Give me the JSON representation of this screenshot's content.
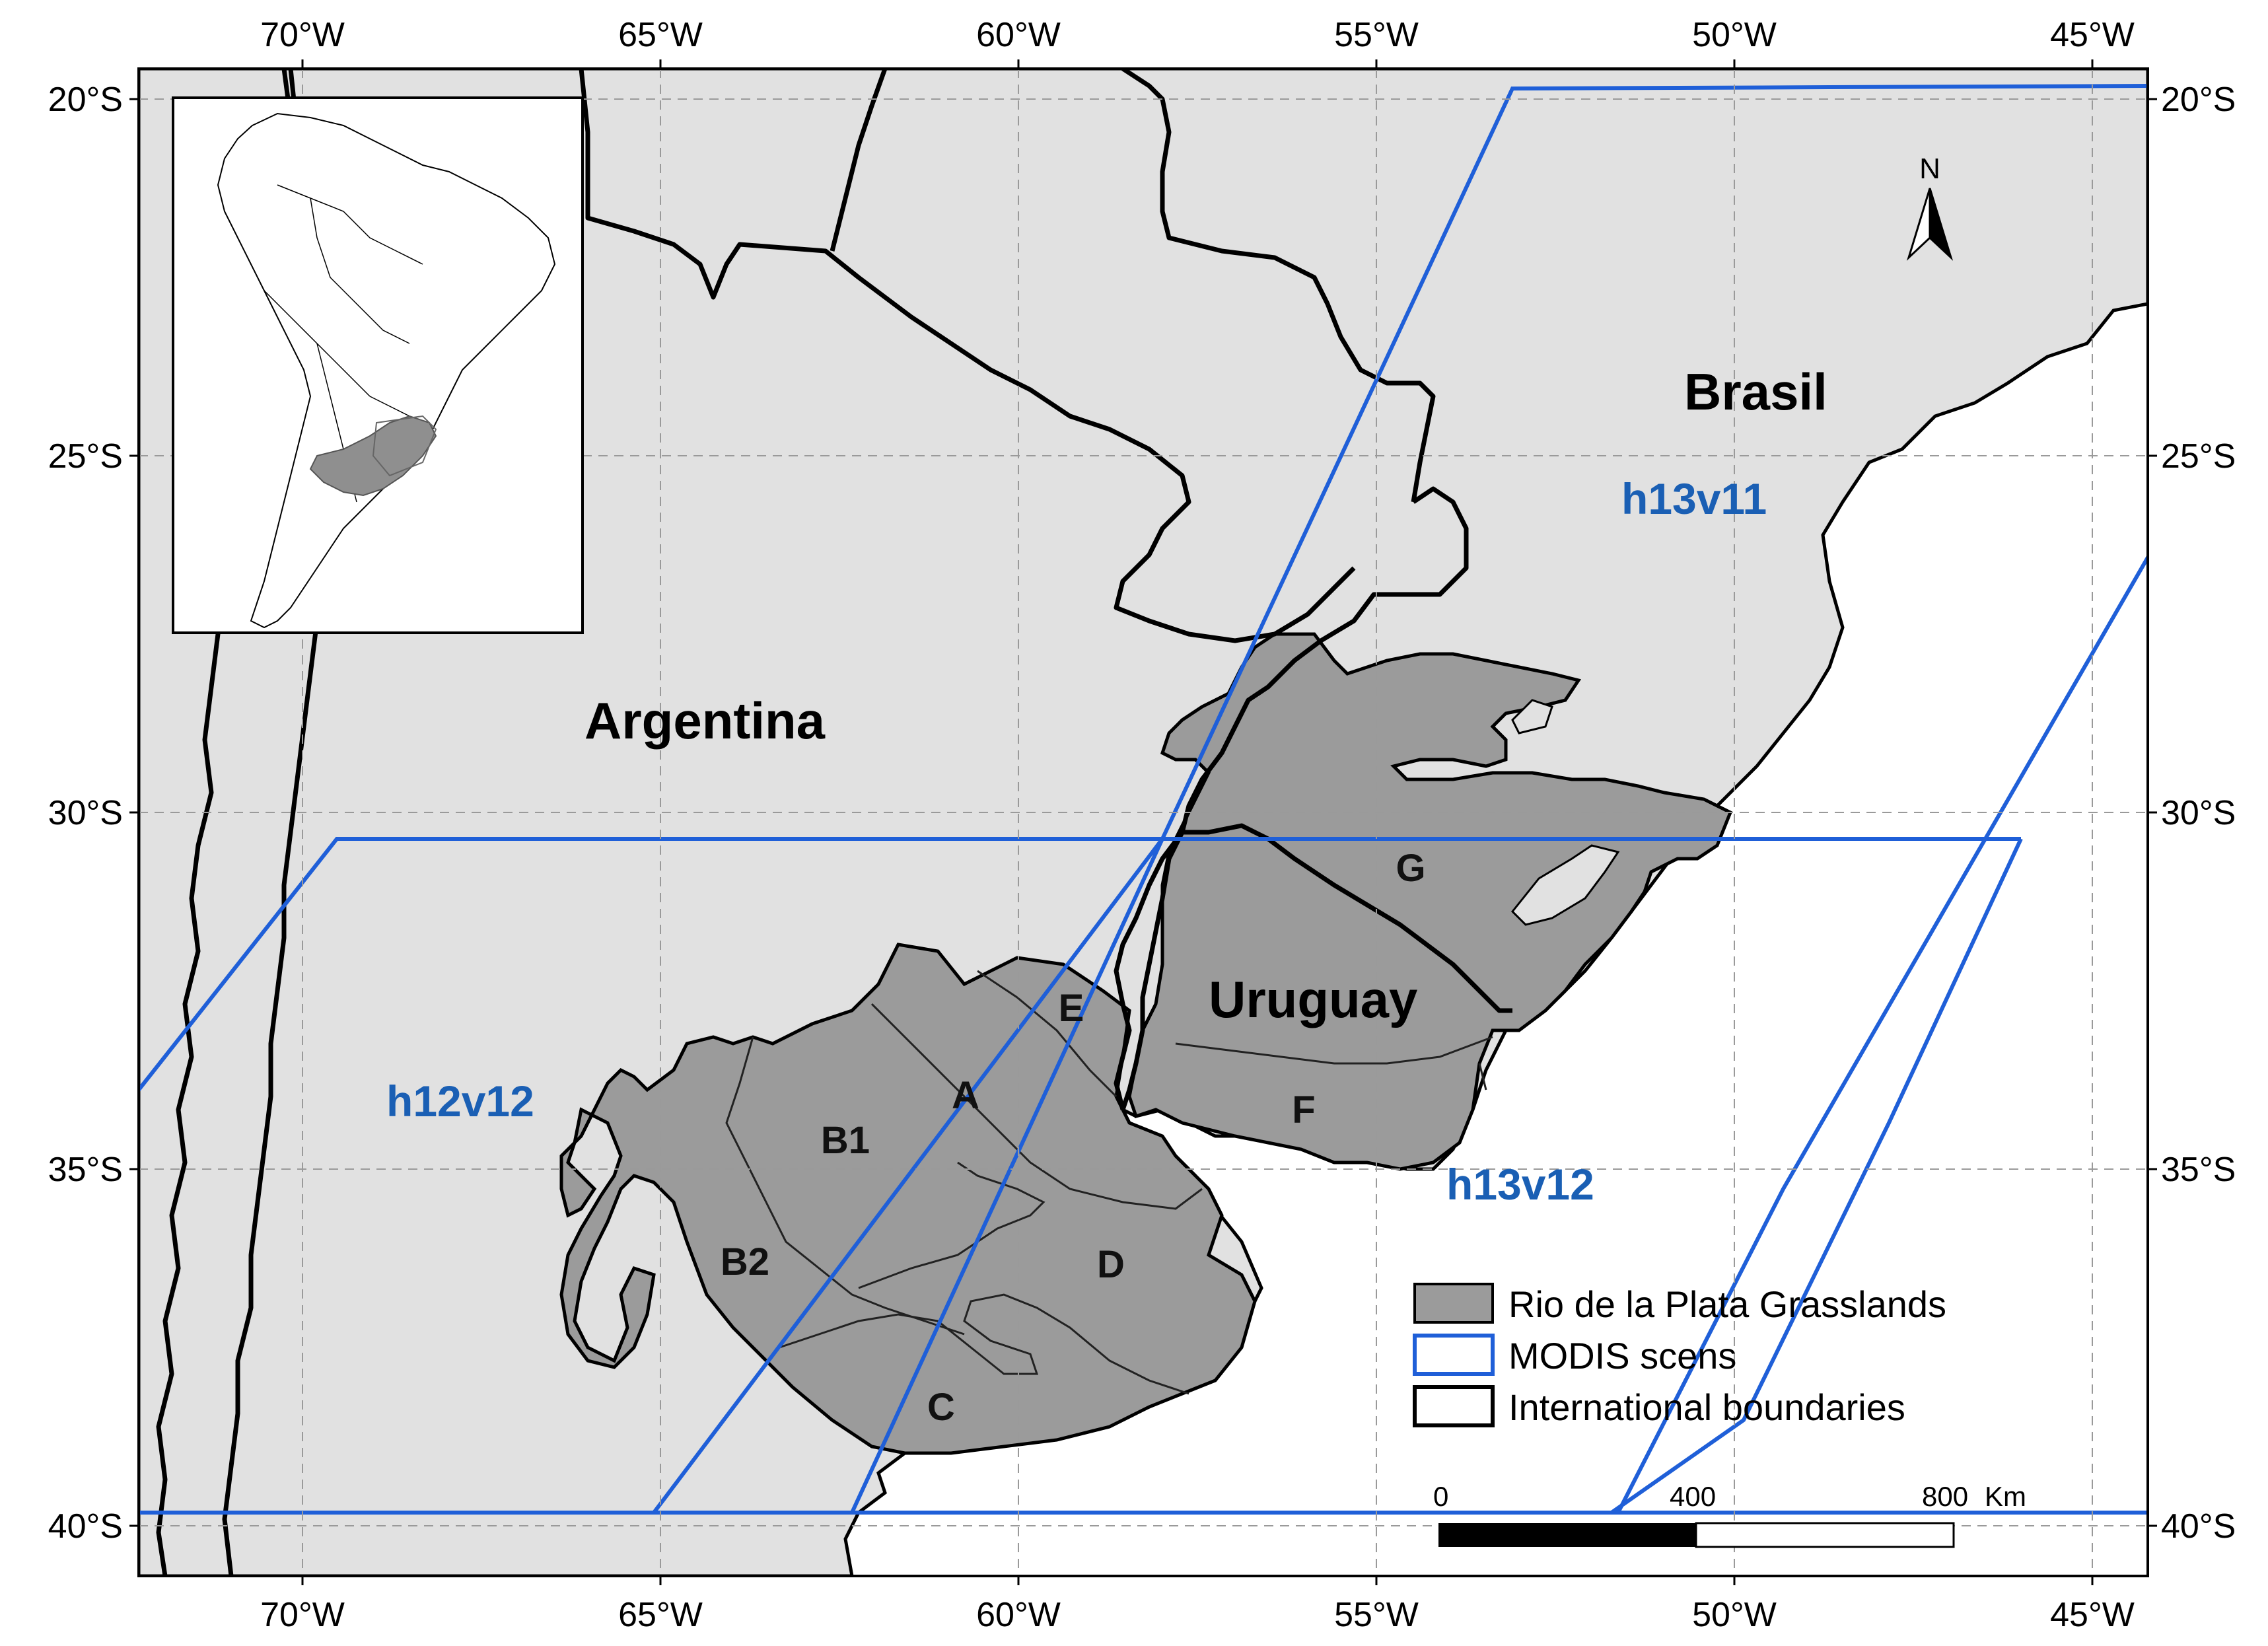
{
  "map": {
    "ticks": {
      "top": [
        "70°W",
        "65°W",
        "60°W",
        "55°W",
        "50°W",
        "45°W"
      ],
      "bottom": [
        "70°W",
        "65°W",
        "60°W",
        "55°W",
        "50°W",
        "45°W"
      ],
      "left": [
        "20°S",
        "25°S",
        "30°S",
        "35°S",
        "40°S"
      ],
      "right": [
        "20°S",
        "25°S",
        "30°S",
        "35°S",
        "40°S"
      ]
    },
    "countries": {
      "argentina": "Argentina",
      "brasil": "Brasil",
      "uruguay": "Uruguay"
    },
    "scenes": {
      "h12v12": "h12v12",
      "h13v11": "h13v11",
      "h13v12": "h13v12"
    },
    "regions": {
      "A": "A",
      "B1": "B1",
      "B2": "B2",
      "C": "C",
      "D": "D",
      "E": "E",
      "F": "F",
      "G": "G"
    },
    "north_arrow": "N",
    "legend": {
      "grasslands": "Rio de la Plata Grasslands",
      "modis": "MODIS scens",
      "boundaries": "International boundaries"
    },
    "scale_bar": {
      "zero": "0",
      "mid": "400",
      "max": "800",
      "unit": "Km"
    },
    "colors": {
      "land": "#e1e1e1",
      "grassland": "#9b9b9b",
      "modis_line": "#1f5fd8",
      "boundary": "#000000",
      "scene_label": "#1a5fb4"
    }
  }
}
